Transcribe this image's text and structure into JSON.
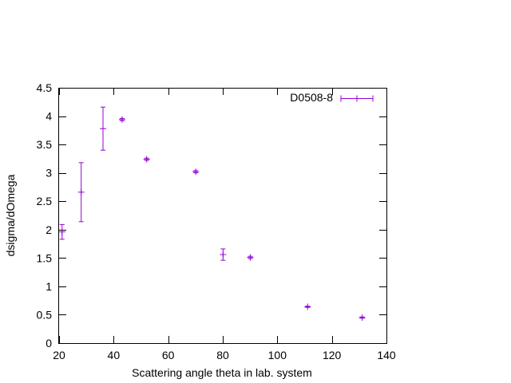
{
  "chart_data": {
    "type": "scatter",
    "title": "",
    "xlabel": "Scattering angle theta in lab. system",
    "ylabel": "dsigma/dOmega",
    "xlim": [
      20,
      140
    ],
    "ylim": [
      0,
      4.5
    ],
    "xticks": [
      20,
      40,
      60,
      80,
      100,
      120,
      140
    ],
    "yticks": [
      0,
      0.5,
      1,
      1.5,
      2,
      2.5,
      3,
      3.5,
      4,
      4.5
    ],
    "xtick_labels": [
      "20",
      "40",
      "60",
      "80",
      "100",
      "120",
      "140"
    ],
    "ytick_labels": [
      "0",
      "0.5",
      "1",
      "1.5",
      "2",
      "2.5",
      "3",
      "3.5",
      "4",
      "4.5"
    ],
    "grid": false,
    "legend_position": "top-right",
    "series": [
      {
        "name": "D0508-8",
        "color": "#9400d3",
        "marker": "plus",
        "errorbars": "y",
        "points": [
          {
            "x": 21.1,
            "y": 1.96,
            "err": 0.13
          },
          {
            "x": 28.1,
            "y": 2.66,
            "err": 0.52
          },
          {
            "x": 36.1,
            "y": 3.78,
            "err": 0.38
          },
          {
            "x": 43.1,
            "y": 3.94,
            "err": 0.02
          },
          {
            "x": 52.1,
            "y": 3.24,
            "err": 0.02
          },
          {
            "x": 70.1,
            "y": 3.02,
            "err": 0.02
          },
          {
            "x": 80.1,
            "y": 1.56,
            "err": 0.1
          },
          {
            "x": 90.1,
            "y": 1.51,
            "err": 0.02
          },
          {
            "x": 111.1,
            "y": 0.64,
            "err": 0.01
          },
          {
            "x": 131.1,
            "y": 0.45,
            "err": 0.01
          }
        ]
      }
    ]
  }
}
